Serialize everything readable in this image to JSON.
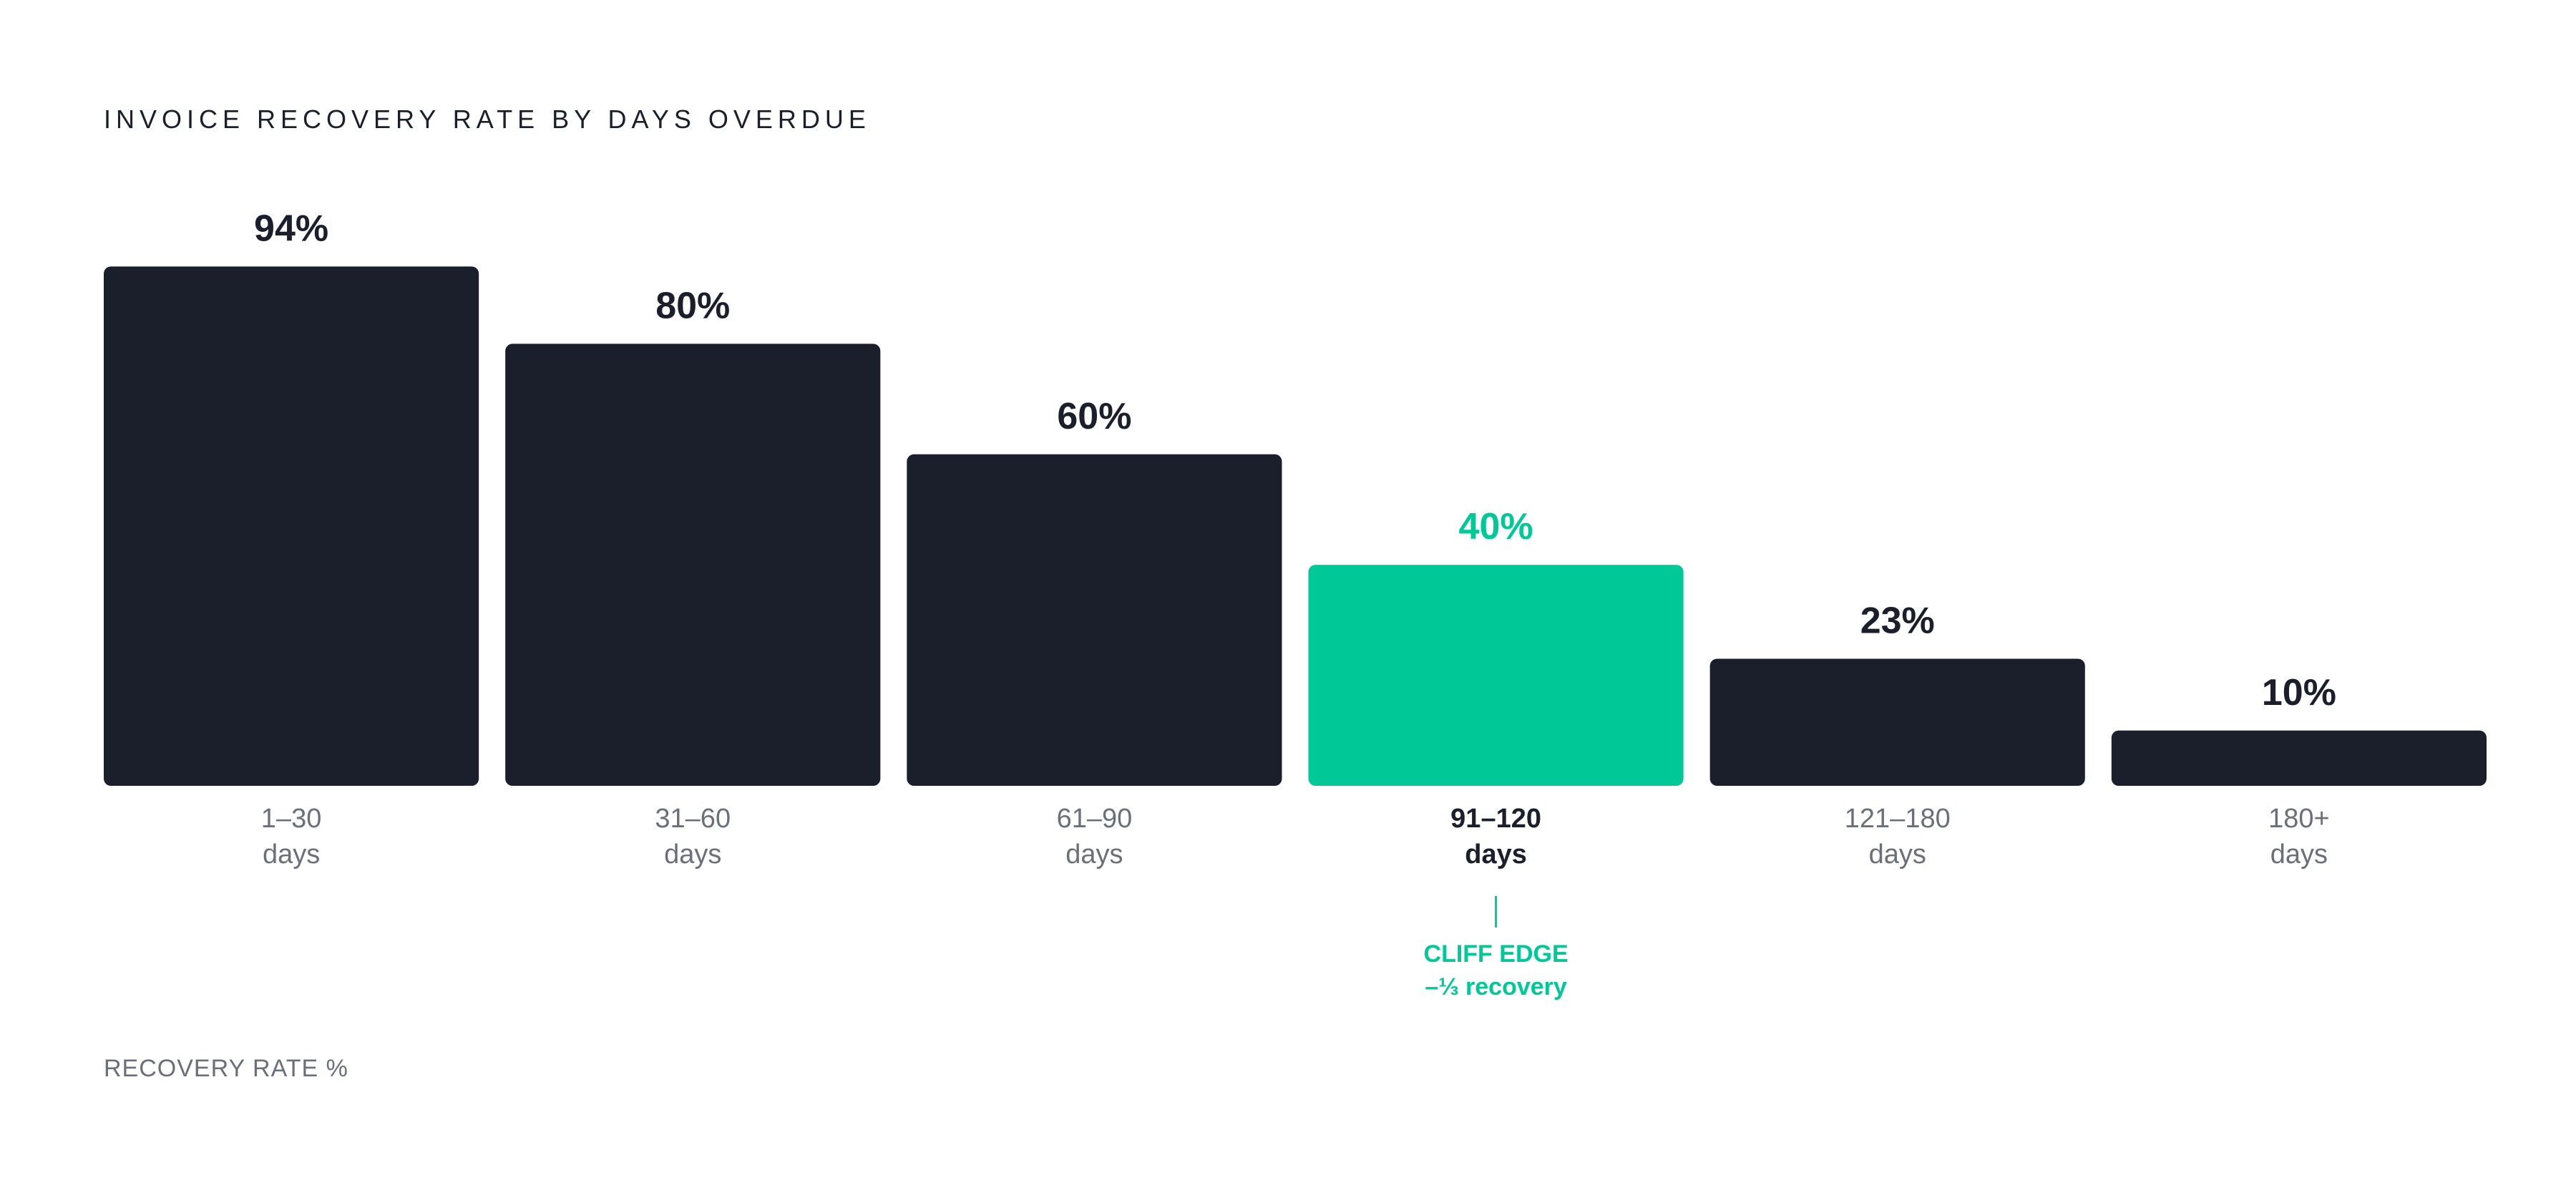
{
  "colors": {
    "bar": "#1b1f2c",
    "highlight": "#00c896",
    "muted_text": "#6b6f7a",
    "strong_text": "#1b1f2c"
  },
  "chart_data": {
    "type": "bar",
    "title": "INVOICE RECOVERY RATE BY DAYS OVERDUE",
    "ylabel": "RECOVERY RATE %",
    "xlabel": "",
    "ylim": [
      0,
      100
    ],
    "grid": false,
    "categories": [
      [
        "1–30",
        "days"
      ],
      [
        "31–60",
        "days"
      ],
      [
        "61–90",
        "days"
      ],
      [
        "91–120",
        "days"
      ],
      [
        "121–180",
        "days"
      ],
      [
        "180+",
        "days"
      ]
    ],
    "values": [
      94,
      80,
      60,
      40,
      23,
      10
    ],
    "value_labels": [
      "94%",
      "80%",
      "60%",
      "40%",
      "23%",
      "10%"
    ],
    "highlight_index": 3,
    "annotation": {
      "category_index": 3,
      "lines": [
        "CLIFF EDGE",
        "–⅓ recovery"
      ]
    }
  }
}
